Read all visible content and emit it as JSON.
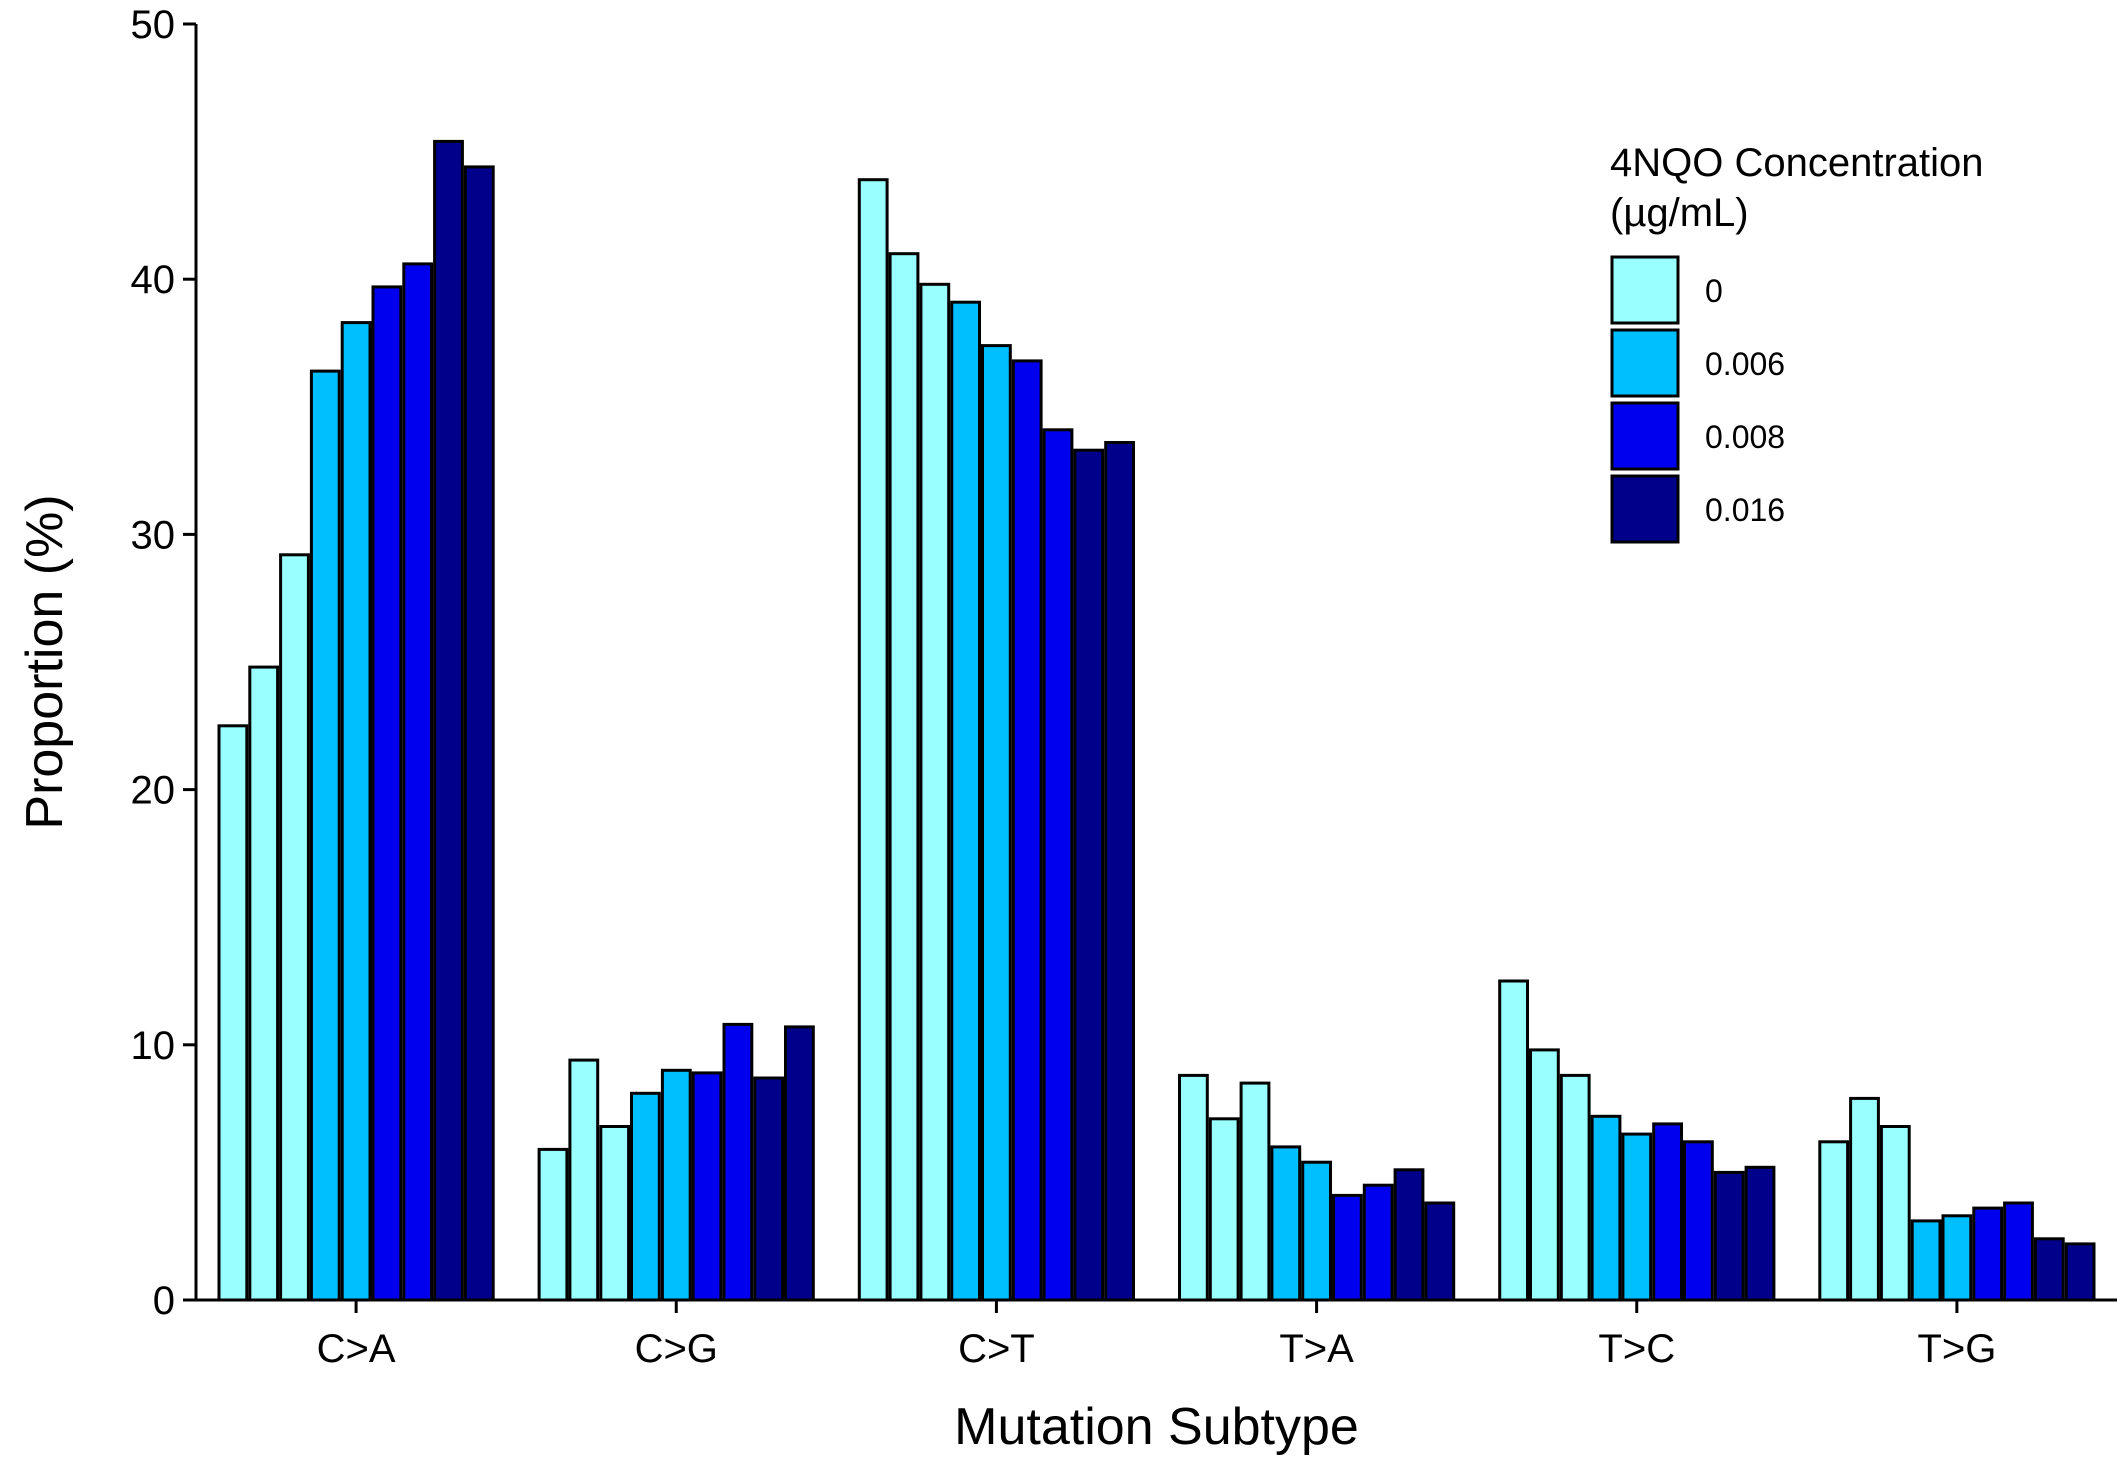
{
  "chart_data": {
    "type": "bar",
    "xlabel": "Mutation Subtype",
    "ylabel": "Proportion (%)",
    "ylim": [
      0,
      50
    ],
    "yticks": [
      0,
      10,
      20,
      30,
      40,
      50
    ],
    "grid": false,
    "legend_position": "top-right",
    "legend": {
      "title_line1": "4NQO Concentration",
      "title_line2": "(µg/mL)",
      "entries": [
        {
          "label": "0",
          "color": "#99FFFF"
        },
        {
          "label": "0.006",
          "color": "#00BFFF"
        },
        {
          "label": "0.008",
          "color": "#0000EE"
        },
        {
          "label": "0.016",
          "color": "#00008B"
        }
      ]
    },
    "categories": [
      "C>A",
      "C>G",
      "C>T",
      "T>A",
      "T>C",
      "T>G"
    ],
    "bar_concentrations": [
      "0",
      "0",
      "0",
      "0.006",
      "0.006",
      "0.008",
      "0.008",
      "0.016",
      "0.016"
    ],
    "values": [
      [
        22.5,
        24.8,
        29.2,
        36.4,
        38.3,
        39.7,
        40.6,
        45.4,
        44.4
      ],
      [
        5.9,
        9.4,
        6.8,
        8.1,
        9.0,
        8.9,
        10.8,
        8.7,
        10.7
      ],
      [
        43.9,
        41.0,
        39.8,
        39.1,
        37.4,
        36.8,
        34.1,
        33.3,
        33.6
      ],
      [
        8.8,
        7.1,
        8.5,
        6.0,
        5.4,
        4.1,
        4.5,
        5.1,
        3.8
      ],
      [
        12.5,
        9.8,
        8.8,
        7.2,
        6.5,
        6.9,
        6.2,
        5.0,
        5.2
      ],
      [
        6.2,
        7.9,
        6.8,
        3.1,
        3.3,
        3.6,
        3.8,
        2.4,
        2.2
      ]
    ]
  }
}
